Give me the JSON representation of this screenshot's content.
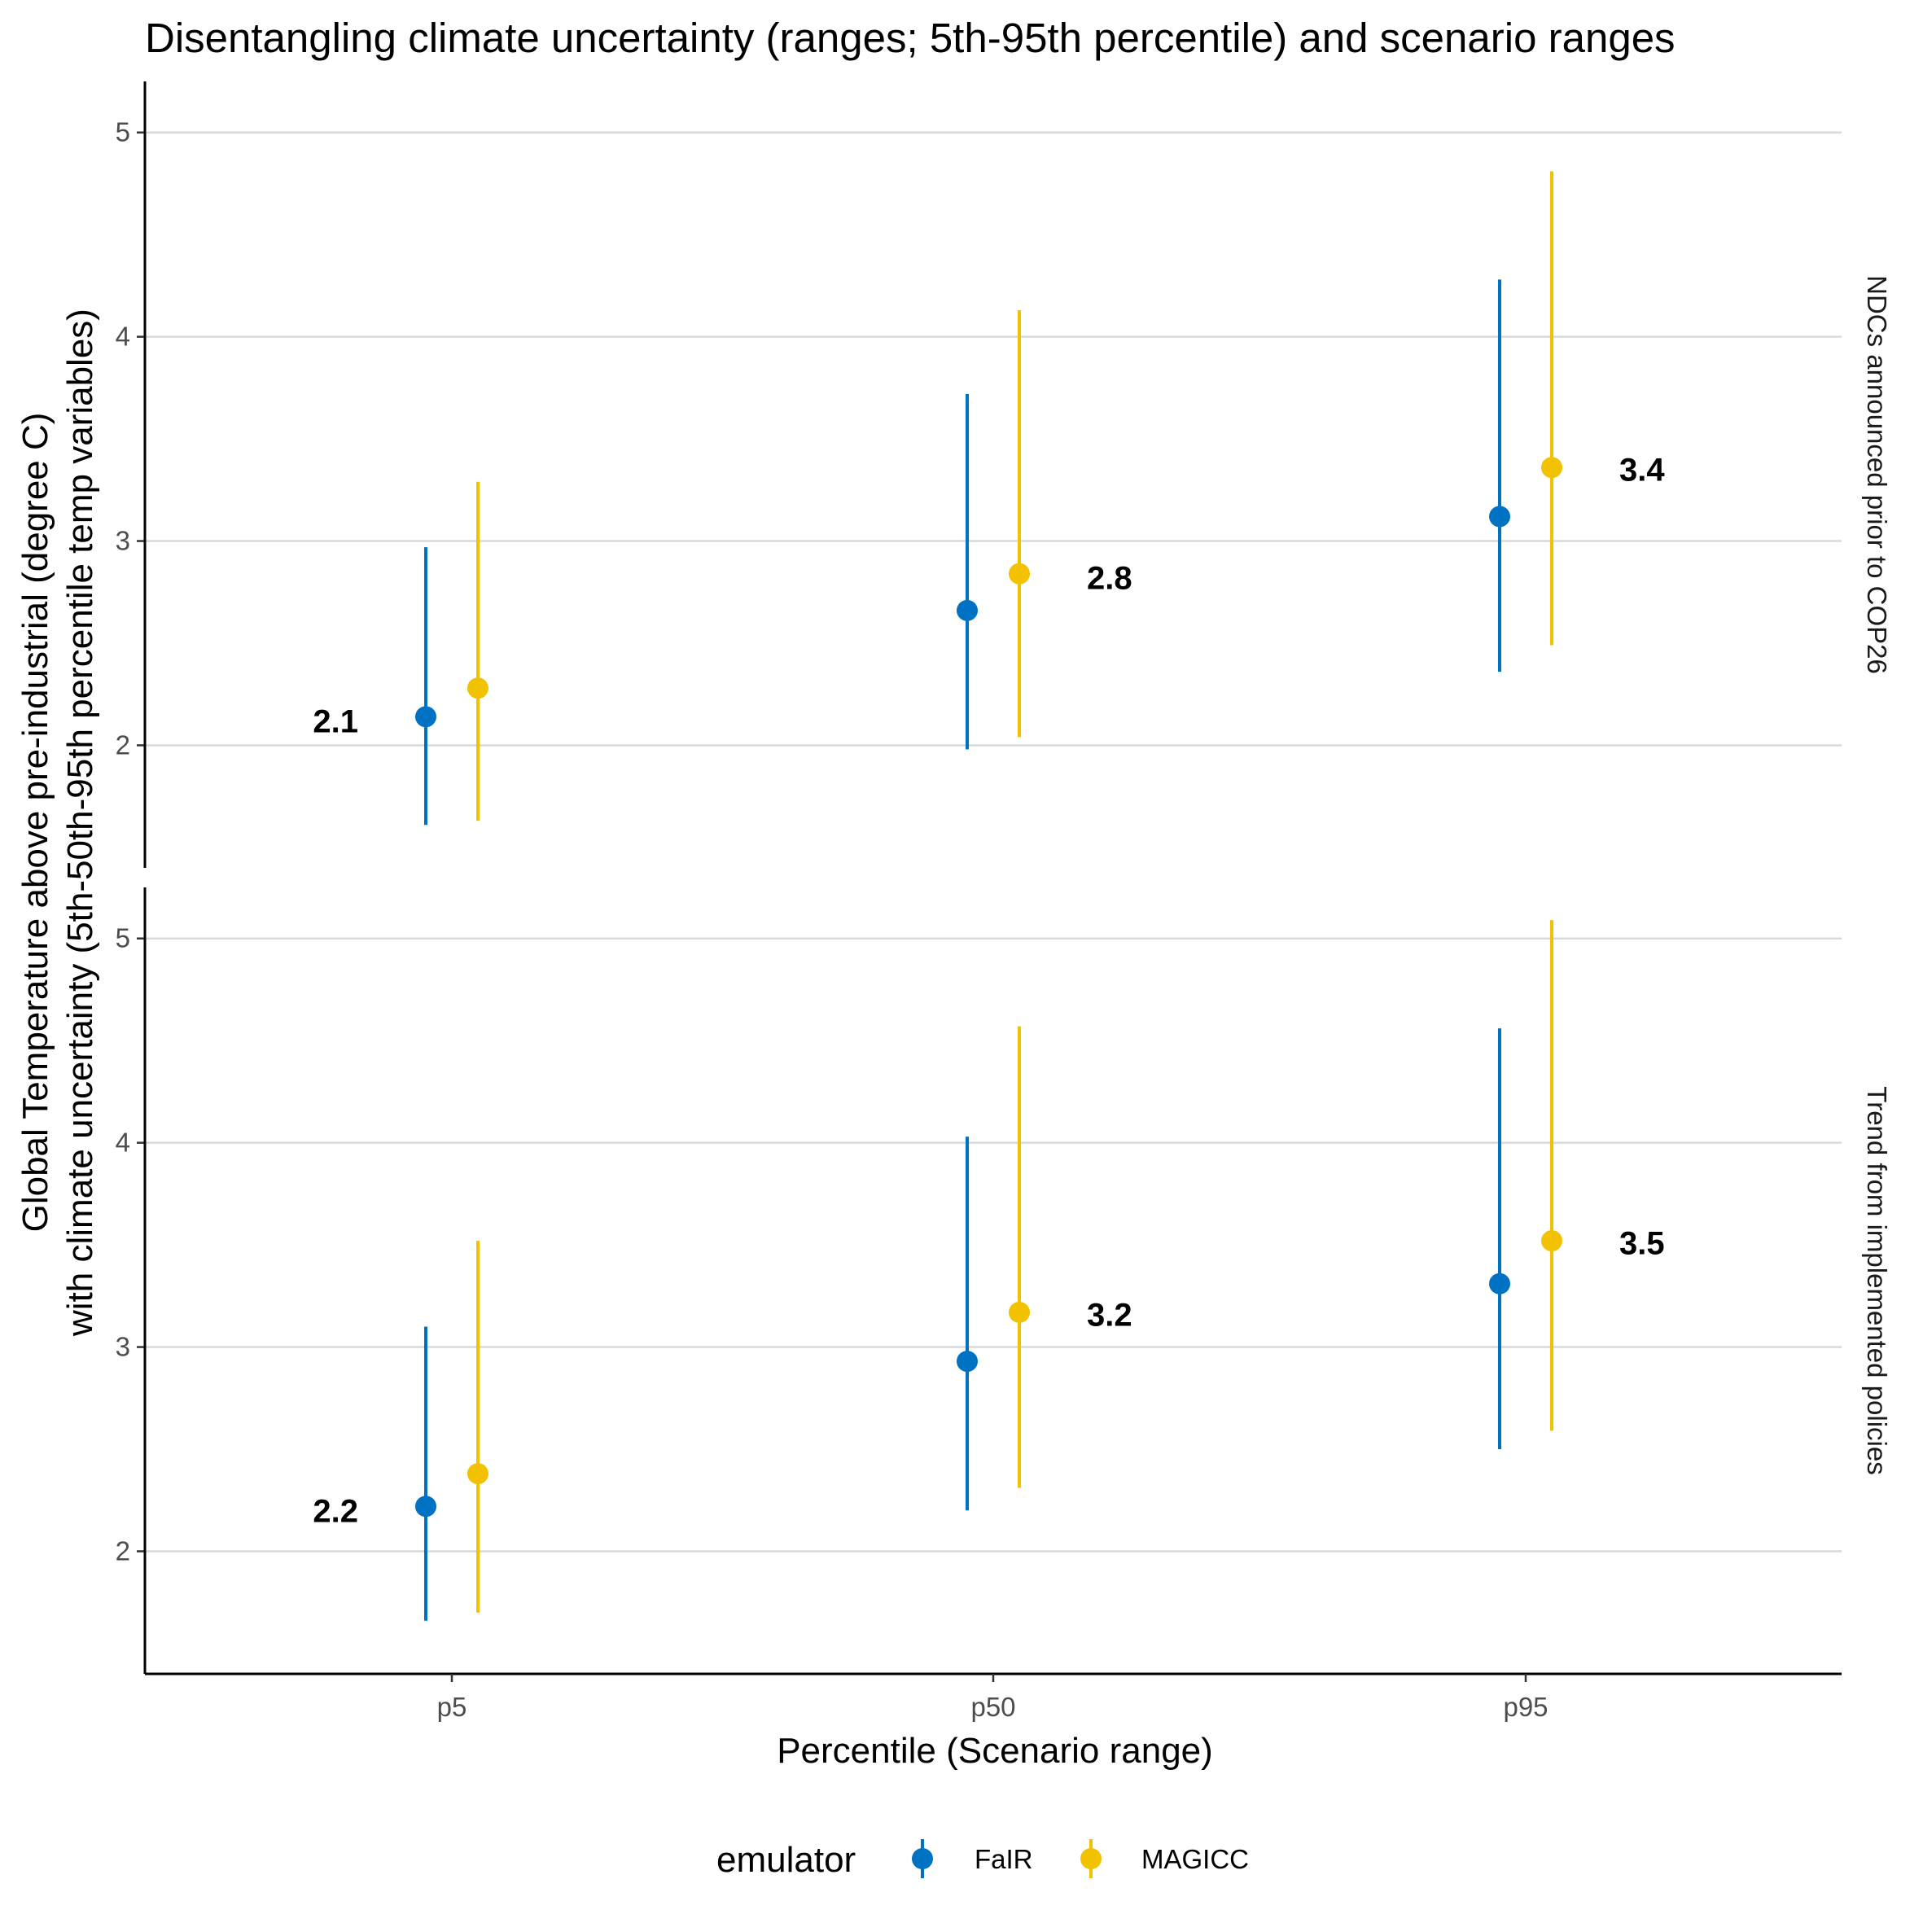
{
  "chart_data": {
    "type": "scatter",
    "title": "Disentangling climate uncertainty (ranges; 5th-95th percentile) and scenario ranges",
    "xlabel": "Percentile (Scenario range)",
    "ylabel_line1": "Global Temperature above pre-industrial (degree C)",
    "ylabel_line2": "with climate uncertainty (5th-50th-95th percentile temp variables)",
    "categories": [
      "p5",
      "p50",
      "p95"
    ],
    "ylim": [
      1.4,
      5.25
    ],
    "yticks": [
      2,
      3,
      4,
      5
    ],
    "grid": "horizontal",
    "legend": {
      "title": "emulator",
      "position": "bottom",
      "entries": [
        "FaIR",
        "MAGICC"
      ]
    },
    "colors": {
      "FaIR": "#0072c3",
      "MAGICC": "#f2c100"
    },
    "panels": [
      {
        "facet_label": "NDCs announced prior to COP26",
        "series": [
          {
            "name": "FaIR",
            "values": [
              {
                "category": "p5",
                "median": 2.14,
                "low": 1.61,
                "high": 2.97
              },
              {
                "category": "p50",
                "median": 2.66,
                "low": 1.98,
                "high": 3.72
              },
              {
                "category": "p95",
                "median": 3.12,
                "low": 2.36,
                "high": 4.28
              }
            ]
          },
          {
            "name": "MAGICC",
            "values": [
              {
                "category": "p5",
                "median": 2.28,
                "low": 1.63,
                "high": 3.29
              },
              {
                "category": "p50",
                "median": 2.84,
                "low": 2.04,
                "high": 4.13
              },
              {
                "category": "p95",
                "median": 3.36,
                "low": 2.49,
                "high": 4.81
              }
            ]
          }
        ],
        "annotations": [
          {
            "category": "p5",
            "text": "2.1",
            "side": "left",
            "y": 2.12
          },
          {
            "category": "p50",
            "text": "2.8",
            "side": "right",
            "y": 2.82
          },
          {
            "category": "p95",
            "text": "3.4",
            "side": "right",
            "y": 3.35
          }
        ]
      },
      {
        "facet_label": "Trend from implemented policies",
        "series": [
          {
            "name": "FaIR",
            "values": [
              {
                "category": "p5",
                "median": 2.22,
                "low": 1.66,
                "high": 3.1
              },
              {
                "category": "p50",
                "median": 2.93,
                "low": 2.2,
                "high": 4.03
              },
              {
                "category": "p95",
                "median": 3.31,
                "low": 2.5,
                "high": 4.56
              }
            ]
          },
          {
            "name": "MAGICC",
            "values": [
              {
                "category": "p5",
                "median": 2.38,
                "low": 1.7,
                "high": 3.52
              },
              {
                "category": "p50",
                "median": 3.17,
                "low": 2.31,
                "high": 4.57
              },
              {
                "category": "p95",
                "median": 3.52,
                "low": 2.59,
                "high": 5.09
              }
            ]
          }
        ],
        "annotations": [
          {
            "category": "p5",
            "text": "2.2",
            "side": "left",
            "y": 2.2
          },
          {
            "category": "p50",
            "text": "3.2",
            "side": "right",
            "y": 3.16
          },
          {
            "category": "p95",
            "text": "3.5",
            "side": "right",
            "y": 3.51
          }
        ]
      }
    ]
  }
}
